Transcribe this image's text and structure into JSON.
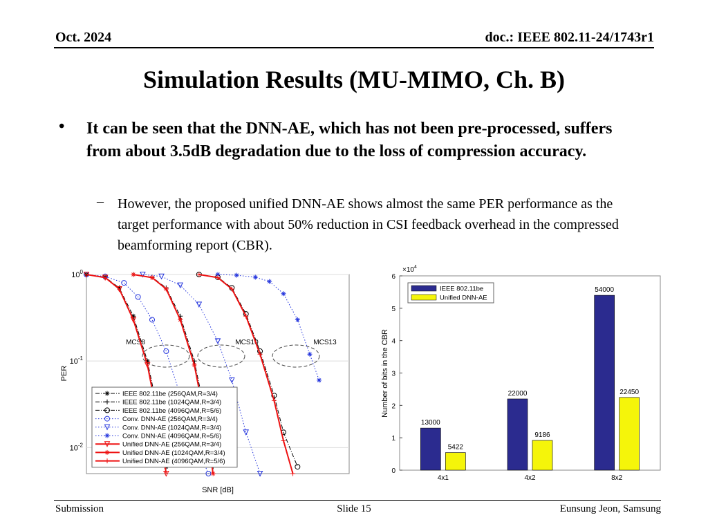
{
  "header": {
    "date": "Oct. 2024",
    "doc": "doc.: IEEE 802.11-24/1743r1"
  },
  "title": "Simulation Results (MU-MIMO, Ch. B)",
  "bullets": [
    {
      "text": "It can be seen that the DNN-AE, which has not been pre-processed, suffers from about 3.5dB degradation due to the loss of compression accuracy.",
      "dash": "–",
      "sub": "However, the proposed unified DNN-AE shows almost the same PER performance as the target performance with about 50% reduction in CSI feedback overhead in the compressed beamforming report (CBR)."
    }
  ],
  "bullet_symbol": "•",
  "footer": {
    "left": "Submission",
    "center": "Slide 15",
    "right": "Eunsung Jeon, Samsung"
  },
  "chart_data": [
    {
      "type": "line",
      "xlabel": "SNR [dB]",
      "ylabel": "PER",
      "ylog": true,
      "ylim": [
        0.005,
        1
      ],
      "yticks": [
        {
          "value": 1,
          "label": "10",
          "exponent": "0"
        },
        {
          "value": 0.1,
          "label": "10",
          "exponent": "-1"
        },
        {
          "value": 0.01,
          "label": "10",
          "exponent": "-2"
        }
      ],
      "xlim": [
        0,
        28
      ],
      "grid": true,
      "legend": "lower left",
      "annotations": [
        "MCS8",
        "MCS10",
        "MCS13"
      ],
      "series": [
        {
          "name": "IEEE 802.11be (256QAM,R=3/4)",
          "color": "#000000",
          "dash": "dashdot",
          "marker": "star",
          "x": [
            0,
            2,
            3.5,
            5,
            6.5,
            7.5,
            8.5
          ],
          "values": [
            1,
            0.93,
            0.7,
            0.33,
            0.1,
            0.03,
            0.006
          ]
        },
        {
          "name": "IEEE 802.11be (1024QAM,R=3/4)",
          "color": "#000000",
          "dash": "dashdot",
          "marker": "plus",
          "x": [
            5,
            7,
            8.5,
            10,
            11.5,
            12.5,
            13.5
          ],
          "values": [
            1,
            0.93,
            0.7,
            0.33,
            0.1,
            0.03,
            0.006
          ]
        },
        {
          "name": "IEEE 802.11be (4096QAM,R=5/6)",
          "color": "#000000",
          "dash": "dashdot",
          "marker": "circle",
          "x": [
            12,
            14,
            15.5,
            17,
            18.5,
            20,
            21,
            22.5
          ],
          "values": [
            1,
            0.93,
            0.7,
            0.35,
            0.13,
            0.04,
            0.015,
            0.006
          ]
        },
        {
          "name": "Conv. DNN-AE (256QAM,R=3/4)",
          "color": "#2233dd",
          "dash": "dotted",
          "marker": "circle",
          "x": [
            0,
            2,
            4,
            5.5,
            7,
            8.5,
            10,
            11.5,
            13
          ],
          "values": [
            1,
            0.95,
            0.8,
            0.55,
            0.3,
            0.13,
            0.04,
            0.012,
            0.005
          ]
        },
        {
          "name": "Conv. DNN-AE (1024QAM,R=3/4)",
          "color": "#2233dd",
          "dash": "dotted",
          "marker": "triangle",
          "x": [
            6,
            8,
            10,
            12,
            14,
            15.5,
            17,
            18.5
          ],
          "values": [
            1,
            0.95,
            0.75,
            0.45,
            0.17,
            0.06,
            0.015,
            0.005
          ]
        },
        {
          "name": "Conv. DNN-AE (4096QAM,R=5/6)",
          "color": "#2233dd",
          "dash": "dotted",
          "marker": "star",
          "x": [
            14,
            16,
            18,
            19.5,
            21,
            22.5,
            23.8,
            24.8
          ],
          "values": [
            1,
            0.98,
            0.93,
            0.83,
            0.6,
            0.3,
            0.12,
            0.06
          ]
        },
        {
          "name": "Unified DNN-AE (256QAM,R=3/4)",
          "color": "#ee1111",
          "dash": "solid",
          "marker": "triangle",
          "x": [
            0,
            2,
            3.5,
            5,
            6.5,
            7.5,
            8.5
          ],
          "values": [
            1,
            0.92,
            0.68,
            0.3,
            0.09,
            0.025,
            0.005
          ]
        },
        {
          "name": "Unified DNN-AE (1024QAM,R=3/4)",
          "color": "#ee1111",
          "dash": "solid",
          "marker": "star",
          "x": [
            5,
            7,
            8.5,
            10,
            11.5,
            12.5,
            13.5
          ],
          "values": [
            1,
            0.92,
            0.68,
            0.3,
            0.09,
            0.025,
            0.005
          ]
        },
        {
          "name": "Unified DNN-AE (4096QAM,R=5/6)",
          "color": "#ee1111",
          "dash": "solid",
          "marker": "plus",
          "x": [
            12,
            14,
            15.5,
            17,
            18.5,
            20,
            21,
            22
          ],
          "values": [
            1,
            0.92,
            0.68,
            0.33,
            0.12,
            0.035,
            0.012,
            0.005
          ]
        }
      ]
    },
    {
      "type": "bar",
      "ylabel": "Number of bits in the CBR",
      "ylim": [
        0,
        60000
      ],
      "yticks": [
        {
          "value": 0,
          "label": "0"
        },
        {
          "value": 10000,
          "label": "1"
        },
        {
          "value": 20000,
          "label": "2"
        },
        {
          "value": 30000,
          "label": "3"
        },
        {
          "value": 40000,
          "label": "4"
        },
        {
          "value": 50000,
          "label": "5"
        },
        {
          "value": 60000,
          "label": "6"
        }
      ],
      "multiplier": {
        "label": "×10",
        "exponent": "4"
      },
      "legend": "upper left",
      "categories": [
        "4x1",
        "4x2",
        "8x2"
      ],
      "series": [
        {
          "name": "IEEE 802.11be",
          "color": "#2b2b8f",
          "values": [
            13000,
            22000,
            54000
          ]
        },
        {
          "name": "Unified DNN-AE",
          "color": "#f5f50a",
          "values": [
            5422,
            9186,
            22450
          ]
        }
      ]
    }
  ]
}
